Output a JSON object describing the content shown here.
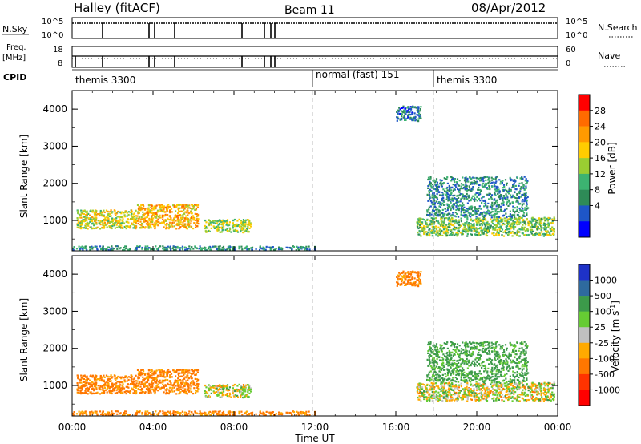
{
  "header": {
    "station": "Halley (fitACF)",
    "beam": "Beam 11",
    "date": "08/Apr/2012"
  },
  "top_panels": {
    "nsky_label": "N.Sky",
    "nsky_ticks": [
      "10^5",
      "10^0"
    ],
    "nsky_right_ticks": [
      "10^5",
      "10^0"
    ],
    "nsearch_label": "N.Search",
    "freq_label_line1": "Freq.",
    "freq_label_line2": "[MHz]",
    "freq_ticks": [
      "18",
      "8"
    ],
    "nave_ticks": [
      "60",
      "0"
    ],
    "nave_label": "Nave",
    "cpid_label": "CPID",
    "cpid_segments": [
      {
        "label": "themis 3300",
        "start_hour": 0
      },
      {
        "label": "normal (fast) 151",
        "start_hour": 12
      },
      {
        "label": "themis 3300",
        "start_hour": 18
      }
    ]
  },
  "x_axis": {
    "label": "Time UT",
    "ticks": [
      "00:00",
      "04:00",
      "08:00",
      "12:00",
      "16:00",
      "20:00",
      "00:00"
    ]
  },
  "power_colorbar": {
    "title": "Power [dB]",
    "ticks": [
      "28",
      "24",
      "20",
      "16",
      "12",
      "8",
      "4"
    ],
    "colors": [
      "#ff0000",
      "#ff6b00",
      "#ff9a00",
      "#ffcc00",
      "#9acd32",
      "#3cb371",
      "#2e8b57",
      "#1e56c8",
      "#0000ff"
    ]
  },
  "velocity_colorbar": {
    "title": "Velocity [m s",
    "title_sup": "-1",
    "title_end": "]",
    "ticks": [
      "1000",
      "500",
      "100",
      "25",
      "-25",
      "-100",
      "-500",
      "-1000"
    ],
    "colors": [
      "#1e32c8",
      "#2e6a9e",
      "#3c9a4a",
      "#66cc33",
      "#c0c0c0",
      "#ffaa00",
      "#ff7700",
      "#ff3300",
      "#ff0000"
    ]
  },
  "chart_data": [
    {
      "type": "heatmap",
      "title": "Power [dB]",
      "xlabel": "Time UT",
      "ylabel": "Slant Range [km]",
      "xlim_hours": [
        0,
        24
      ],
      "ylim_km": [
        180,
        4500
      ],
      "y_ticks": [
        "1000",
        "2000",
        "3000",
        "4000"
      ],
      "regions": [
        {
          "t0": 0.2,
          "t1": 3.2,
          "r0": 800,
          "r1": 1300,
          "level_db": 18
        },
        {
          "t0": 3.2,
          "t1": 6.2,
          "r0": 800,
          "r1": 1450,
          "level_db": 22
        },
        {
          "t0": 6.5,
          "t1": 8.8,
          "r0": 700,
          "r1": 1050,
          "level_db": 16
        },
        {
          "t0": 0.0,
          "t1": 12.0,
          "r0": 220,
          "r1": 330,
          "level_db": 8
        },
        {
          "t0": 17.0,
          "t1": 23.8,
          "r0": 600,
          "r1": 1100,
          "level_db": 14
        },
        {
          "t0": 17.5,
          "t1": 22.5,
          "r0": 1100,
          "r1": 2200,
          "level_db": 8
        },
        {
          "t0": 16.0,
          "t1": 17.2,
          "r0": 3700,
          "r1": 4100,
          "level_db": 6
        }
      ]
    },
    {
      "type": "heatmap",
      "title": "Velocity [m s-1]",
      "xlabel": "Time UT",
      "ylabel": "Slant Range [km]",
      "xlim_hours": [
        0,
        24
      ],
      "ylim_km": [
        180,
        4500
      ],
      "y_ticks": [
        "1000",
        "2000",
        "3000",
        "4000"
      ],
      "regions": [
        {
          "t0": 0.2,
          "t1": 3.2,
          "r0": 800,
          "r1": 1300,
          "velocity": -100
        },
        {
          "t0": 3.2,
          "t1": 6.2,
          "r0": 800,
          "r1": 1450,
          "velocity": -100
        },
        {
          "t0": 6.5,
          "t1": 8.8,
          "r0": 700,
          "r1": 1050,
          "velocity": 0
        },
        {
          "t0": 0.0,
          "t1": 12.0,
          "r0": 220,
          "r1": 330,
          "velocity": -100
        },
        {
          "t0": 17.0,
          "t1": 23.8,
          "r0": 600,
          "r1": 1100,
          "velocity": 0
        },
        {
          "t0": 17.5,
          "t1": 22.5,
          "r0": 1100,
          "r1": 2200,
          "velocity": 100
        },
        {
          "t0": 16.0,
          "t1": 17.2,
          "r0": 3700,
          "r1": 4100,
          "velocity": -100
        }
      ]
    }
  ]
}
